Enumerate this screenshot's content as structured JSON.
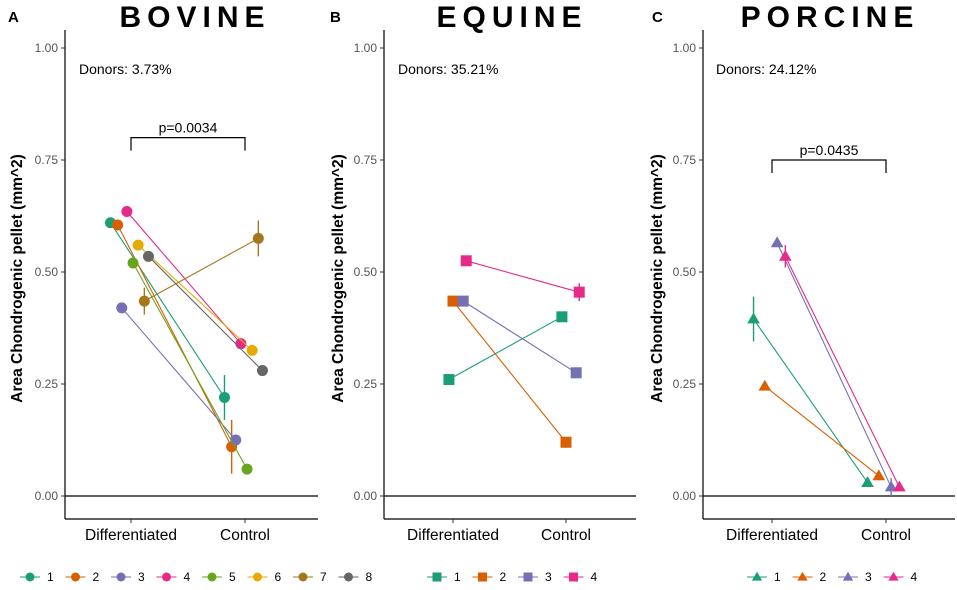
{
  "colors": {
    "bovine_palette": [
      "#1b9e77",
      "#d95f02",
      "#7570b3",
      "#e7298a",
      "#66a61e",
      "#e6ab02",
      "#a6761d",
      "#666666"
    ],
    "equine_palette": [
      "#1b9e77",
      "#d95f02",
      "#7570b3",
      "#e7298a"
    ],
    "porcine_palette": [
      "#1b9e77",
      "#d95f02",
      "#7570b3",
      "#e7298a"
    ]
  },
  "chart_data": [
    {
      "type": "line",
      "panel_letter": "A",
      "title": "BOVINE",
      "ylabel": "Area Chondrogenic pellet (mm^2)",
      "ylim": [
        0,
        1
      ],
      "yticks": [
        "0.00",
        "0.25",
        "0.50",
        "0.75",
        "1.00"
      ],
      "categories": [
        "Differentiated",
        "Control"
      ],
      "marker": "circle",
      "annotation": "Donors: 3.73%",
      "pvalue": "p=0.0034",
      "pvalue_y": 0.8,
      "series": [
        {
          "name": "1",
          "dx": -0.2,
          "values": [
            0.61,
            0.22
          ],
          "err": [
            0.005,
            0.05
          ]
        },
        {
          "name": "2",
          "dx": -0.13,
          "values": [
            0.605,
            0.11
          ],
          "err": [
            0.005,
            0.06
          ]
        },
        {
          "name": "3",
          "dx": -0.09,
          "values": [
            0.42,
            0.125
          ],
          "err": [
            0.005,
            0.01
          ]
        },
        {
          "name": "4",
          "dx": -0.04,
          "values": [
            0.635,
            0.34
          ],
          "err": [
            0.008,
            0.008
          ]
        },
        {
          "name": "5",
          "dx": 0.02,
          "values": [
            0.52,
            0.06
          ],
          "err": [
            0.005,
            0.005
          ]
        },
        {
          "name": "6",
          "dx": 0.07,
          "values": [
            0.56,
            0.325
          ],
          "err": [
            0.005,
            0.005
          ]
        },
        {
          "name": "7",
          "dx": 0.13,
          "values": [
            0.435,
            0.575
          ],
          "err": [
            0.03,
            0.04
          ]
        },
        {
          "name": "8",
          "dx": 0.17,
          "values": [
            0.535,
            0.28
          ],
          "err": [
            0.005,
            0.008
          ]
        }
      ],
      "legend": [
        "1",
        "2",
        "3",
        "4",
        "5",
        "6",
        "7",
        "8"
      ]
    },
    {
      "type": "line",
      "panel_letter": "B",
      "title": "EQUINE",
      "ylabel": "Area Chondrogenic pellet (mm^2)",
      "ylim": [
        0,
        1
      ],
      "yticks": [
        "0.00",
        "0.25",
        "0.50",
        "0.75",
        "1.00"
      ],
      "categories": [
        "Differentiated",
        "Control"
      ],
      "marker": "square",
      "annotation": "Donors: 35.21%",
      "series": [
        {
          "name": "1",
          "dx": -0.04,
          "values": [
            0.26,
            0.4
          ],
          "err": [
            0.008,
            0.008
          ]
        },
        {
          "name": "2",
          "dx": 0.0,
          "values": [
            0.435,
            0.12
          ],
          "err": [
            0.008,
            0.012
          ]
        },
        {
          "name": "3",
          "dx": 0.1,
          "values": [
            0.435,
            0.275
          ],
          "err": [
            0.008,
            0.012
          ]
        },
        {
          "name": "4",
          "dx": 0.13,
          "values": [
            0.525,
            0.455
          ],
          "err": [
            0.008,
            0.02
          ]
        }
      ],
      "legend": [
        "1",
        "2",
        "3",
        "4"
      ]
    },
    {
      "type": "line",
      "panel_letter": "C",
      "title": "PORCINE",
      "ylabel": "Area Chondrogenic pellet (mm^2)",
      "ylim": [
        0,
        1
      ],
      "yticks": [
        "0.00",
        "0.25",
        "0.50",
        "0.75",
        "1.00"
      ],
      "categories": [
        "Differentiated",
        "Control"
      ],
      "marker": "triangle",
      "annotation": "Donors: 24.12%",
      "pvalue": "p=0.0435",
      "pvalue_y": 0.75,
      "series": [
        {
          "name": "1",
          "dx": -0.18,
          "values": [
            0.395,
            0.03
          ],
          "err": [
            0.05,
            0.008
          ]
        },
        {
          "name": "2",
          "dx": -0.07,
          "values": [
            0.245,
            0.045
          ],
          "err": [
            0.008,
            0.01
          ]
        },
        {
          "name": "3",
          "dx": 0.05,
          "values": [
            0.565,
            0.02
          ],
          "err": [
            0.008,
            0.02
          ]
        },
        {
          "name": "4",
          "dx": 0.13,
          "values": [
            0.535,
            0.02
          ],
          "err": [
            0.025,
            0.005
          ]
        }
      ],
      "legend": [
        "1",
        "2",
        "3",
        "4"
      ]
    }
  ]
}
